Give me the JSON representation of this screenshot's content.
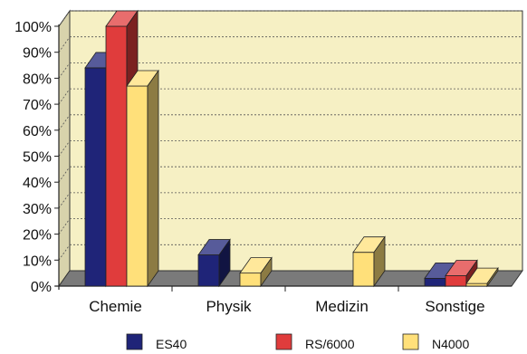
{
  "chart_data": {
    "type": "bar",
    "categories": [
      "Chemie",
      "Physik",
      "Medizin",
      "Sonstige"
    ],
    "series": [
      {
        "name": "ES40",
        "values": [
          84,
          12,
          0,
          3
        ],
        "color": "#1f2478"
      },
      {
        "name": "RS/6000",
        "values": [
          100,
          0,
          0,
          4
        ],
        "color": "#e03c3c"
      },
      {
        "name": "N4000",
        "values": [
          77,
          5,
          13,
          1
        ],
        "color": "#ffe07a"
      }
    ],
    "ylim": [
      0,
      100
    ],
    "y_ticks": [
      "0%",
      "10%",
      "20%",
      "30%",
      "40%",
      "50%",
      "60%",
      "70%",
      "80%",
      "90%",
      "100%"
    ],
    "grid": true,
    "legend_position": "bottom",
    "colors": {
      "wall": "#f6f0c4",
      "floor": "#7a7a7a",
      "grid": "#555555"
    }
  }
}
